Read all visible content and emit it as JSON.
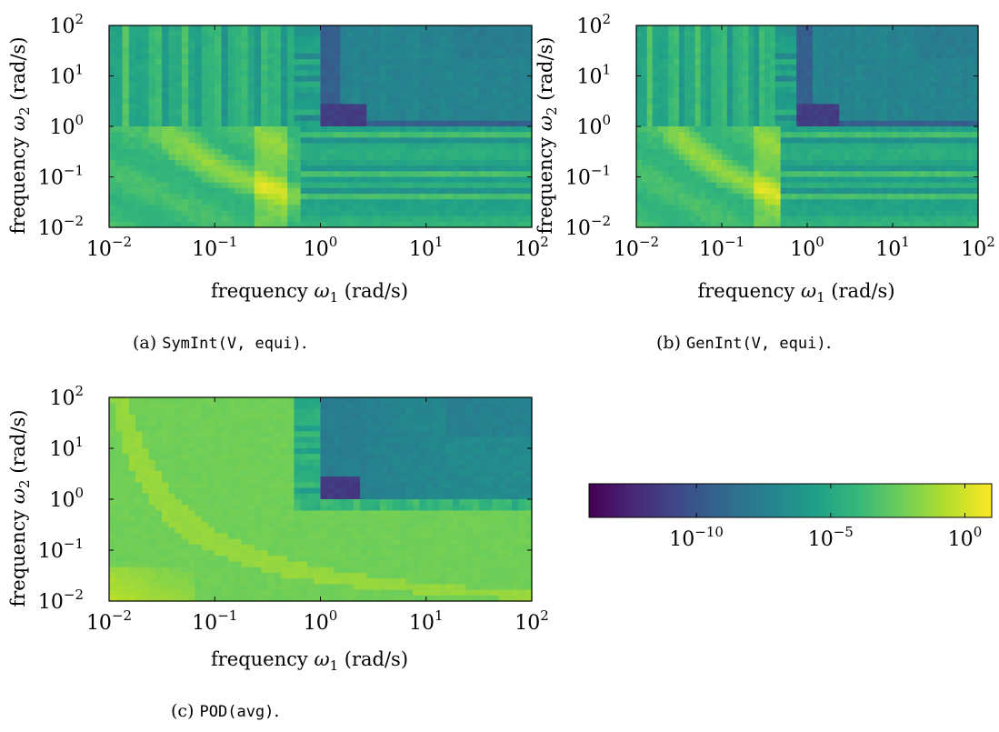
{
  "colors": {
    "viridis": [
      "#440154",
      "#482878",
      "#3e4a89",
      "#31688e",
      "#26828e",
      "#1f9e89",
      "#35b779",
      "#6ece58",
      "#b5de2b",
      "#fde725"
    ]
  },
  "chart_data": [
    {
      "type": "heatmap",
      "panel": "a",
      "caption": {
        "prefix": "(a) ",
        "code": "SymInt(V, equi)",
        "suffix": "."
      },
      "xlabel": {
        "base": "frequency ",
        "sym": "ω",
        "sub": "1",
        "unit": " (rad/s)"
      },
      "ylabel": {
        "base": "frequency ",
        "sym": "ω",
        "sub": "2",
        "unit": " (rad/s)"
      },
      "x_scale": "log",
      "y_scale": "log",
      "xlim": [
        0.01,
        100
      ],
      "ylim": [
        0.01,
        100
      ],
      "x_ticks": [
        -2,
        -1,
        0,
        1,
        2
      ],
      "y_ticks": [
        -2,
        -1,
        0,
        1,
        2
      ],
      "tick_base": "10",
      "z_scale": "log",
      "zlim": [
        1e-14,
        10
      ],
      "grid": false
    },
    {
      "type": "heatmap",
      "panel": "b",
      "caption": {
        "prefix": "(b) ",
        "code": "GenInt(V, equi)",
        "suffix": "."
      },
      "xlabel": {
        "base": "frequency ",
        "sym": "ω",
        "sub": "1",
        "unit": " (rad/s)"
      },
      "ylabel": {
        "base": "frequency ",
        "sym": "ω",
        "sub": "2",
        "unit": " (rad/s)"
      },
      "x_scale": "log",
      "y_scale": "log",
      "xlim": [
        0.01,
        100
      ],
      "ylim": [
        0.01,
        100
      ],
      "x_ticks": [
        -2,
        -1,
        0,
        1,
        2
      ],
      "y_ticks": [
        -2,
        -1,
        0,
        1,
        2
      ],
      "tick_base": "10",
      "z_scale": "log",
      "zlim": [
        1e-14,
        10
      ],
      "grid": false
    },
    {
      "type": "heatmap",
      "panel": "c",
      "caption": {
        "prefix": "(c) ",
        "code": "POD(avg)",
        "suffix": "."
      },
      "xlabel": {
        "base": "frequency ",
        "sym": "ω",
        "sub": "1",
        "unit": " (rad/s)"
      },
      "ylabel": {
        "base": "frequency ",
        "sym": "ω",
        "sub": "2",
        "unit": " (rad/s)"
      },
      "x_scale": "log",
      "y_scale": "log",
      "xlim": [
        0.01,
        100
      ],
      "ylim": [
        0.01,
        100
      ],
      "x_ticks": [
        -2,
        -1,
        0,
        1,
        2
      ],
      "y_ticks": [
        -2,
        -1,
        0,
        1,
        2
      ],
      "tick_base": "10",
      "z_scale": "log",
      "zlim": [
        1e-14,
        10
      ],
      "grid": false
    }
  ],
  "colorbar": {
    "orientation": "horizontal",
    "scale": "log",
    "range": [
      1e-14,
      10
    ],
    "ticks": [
      {
        "base": "10",
        "exp": "−10",
        "value": -10
      },
      {
        "base": "10",
        "exp": "−5",
        "value": -5
      },
      {
        "base": "10",
        "exp": "0",
        "value": 0
      }
    ]
  }
}
